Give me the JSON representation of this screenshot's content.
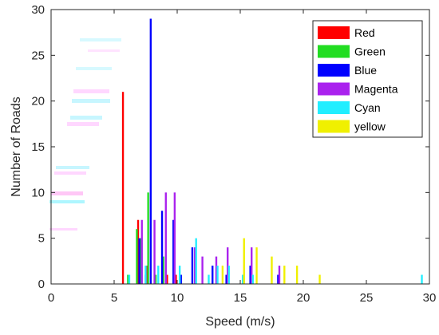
{
  "chart_data": {
    "type": "bar",
    "title": "",
    "xlabel": "Speed (m/s)",
    "ylabel": "Number of Roads",
    "xlim": [
      0,
      30
    ],
    "ylim": [
      0,
      30
    ],
    "xticks": [
      0,
      5,
      10,
      15,
      20,
      25,
      30
    ],
    "yticks": [
      0,
      5,
      10,
      15,
      20,
      25,
      30
    ],
    "grid": false,
    "legend_position": "top-right",
    "bar_width": 0.15,
    "series": [
      {
        "name": "Red",
        "color": "#ff0000",
        "points": [
          [
            5.7,
            21
          ],
          [
            6.9,
            7
          ],
          [
            7.6,
            2
          ],
          [
            9.2,
            1
          ],
          [
            9.9,
            1
          ]
        ]
      },
      {
        "name": "Green",
        "color": "#22dd22",
        "points": [
          [
            6.1,
            1
          ],
          [
            6.8,
            6
          ],
          [
            7.1,
            5
          ],
          [
            7.7,
            10
          ],
          [
            8.3,
            1
          ],
          [
            8.9,
            3
          ]
        ]
      },
      {
        "name": "Blue",
        "color": "#0000ff",
        "points": [
          [
            7.0,
            5
          ],
          [
            7.9,
            29
          ],
          [
            8.8,
            8
          ],
          [
            9.7,
            7
          ],
          [
            10.3,
            1
          ],
          [
            11.2,
            4
          ],
          [
            12.8,
            2
          ],
          [
            13.9,
            1
          ],
          [
            15.8,
            2
          ],
          [
            18.0,
            1
          ]
        ]
      },
      {
        "name": "Magenta",
        "color": "#aa22ee",
        "points": [
          [
            7.2,
            7
          ],
          [
            7.5,
            1
          ],
          [
            8.2,
            7
          ],
          [
            9.1,
            10
          ],
          [
            9.8,
            10
          ],
          [
            11.4,
            4
          ],
          [
            12.0,
            3
          ],
          [
            13.1,
            3
          ],
          [
            14.0,
            4
          ],
          [
            15.9,
            4
          ],
          [
            18.1,
            2
          ]
        ]
      },
      {
        "name": "Cyan",
        "color": "#22eeff",
        "points": [
          [
            6.2,
            1
          ],
          [
            7.5,
            2
          ],
          [
            8.5,
            2
          ],
          [
            10.2,
            2
          ],
          [
            11.5,
            5
          ],
          [
            12.5,
            1
          ],
          [
            13.2,
            2
          ],
          [
            14.1,
            2
          ],
          [
            15.2,
            1
          ],
          [
            16.0,
            1
          ],
          [
            29.4,
            1
          ]
        ]
      },
      {
        "name": "yellow",
        "color": "#f0f000",
        "points": [
          [
            13.6,
            2
          ],
          [
            15.3,
            5
          ],
          [
            16.3,
            4
          ],
          [
            17.5,
            3
          ],
          [
            18.5,
            2
          ],
          [
            19.5,
            2
          ],
          [
            21.3,
            1
          ]
        ]
      }
    ]
  }
}
